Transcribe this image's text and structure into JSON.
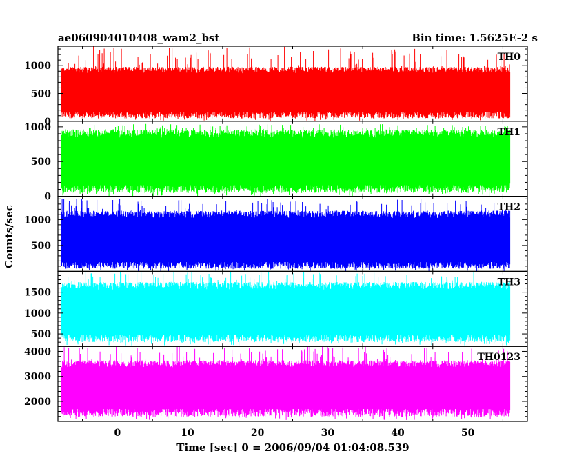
{
  "header": {
    "title": "ae060904010408_wam2_bst",
    "bin_time": "Bin time: 1.5625E-2 s"
  },
  "chart_data": {
    "type": "line",
    "title": "ae060904010408_wam2_bst",
    "subtitle": "Bin time: 1.5625E-2 s",
    "xlabel": "Time [sec] 0 = 2006/09/04 01:04:08.539",
    "ylabel": "Counts/sec",
    "xlim": [
      -8.5,
      58.5
    ],
    "x_ticks": [
      0,
      10,
      20,
      30,
      40,
      50
    ],
    "x_tick_labels": [
      "0",
      "10",
      "20",
      "30",
      "40",
      "50"
    ],
    "data_x_range": [
      -8,
      56
    ],
    "grid": false,
    "panels": [
      {
        "name": "TH0",
        "color": "#ff0000",
        "ylim": [
          0,
          1350
        ],
        "y_ticks": [
          0,
          500,
          1000
        ],
        "y_tick_labels": [
          "0",
          "500",
          "1000"
        ],
        "typical_range": [
          130,
          920
        ],
        "envelope": [
          0,
          1350
        ]
      },
      {
        "name": "TH1",
        "color": "#00ff00",
        "ylim": [
          0,
          1080
        ],
        "y_ticks": [
          0,
          500,
          1000
        ],
        "y_tick_labels": [
          "0",
          "500",
          "1000"
        ],
        "typical_range": [
          120,
          900
        ],
        "envelope": [
          0,
          1040
        ]
      },
      {
        "name": "TH2",
        "color": "#0000ff",
        "ylim": [
          0,
          1450
        ],
        "y_ticks": [
          500,
          1000
        ],
        "y_tick_labels": [
          "500",
          "1000"
        ],
        "typical_range": [
          130,
          1100
        ],
        "envelope": [
          0,
          1400
        ]
      },
      {
        "name": "TH3",
        "color": "#00ffff",
        "ylim": [
          200,
          2000
        ],
        "y_ticks": [
          500,
          1000,
          1500
        ],
        "y_tick_labels": [
          "500",
          "1000",
          "1500"
        ],
        "typical_range": [
          420,
          1650
        ],
        "envelope": [
          220,
          2000
        ]
      },
      {
        "name": "TH0123",
        "color": "#ff00ff",
        "ylim": [
          1200,
          4200
        ],
        "y_ticks": [
          2000,
          3000,
          4000
        ],
        "y_tick_labels": [
          "2000",
          "3000",
          "4000"
        ],
        "typical_range": [
          1600,
          3500
        ],
        "envelope": [
          1250,
          4200
        ]
      }
    ]
  }
}
